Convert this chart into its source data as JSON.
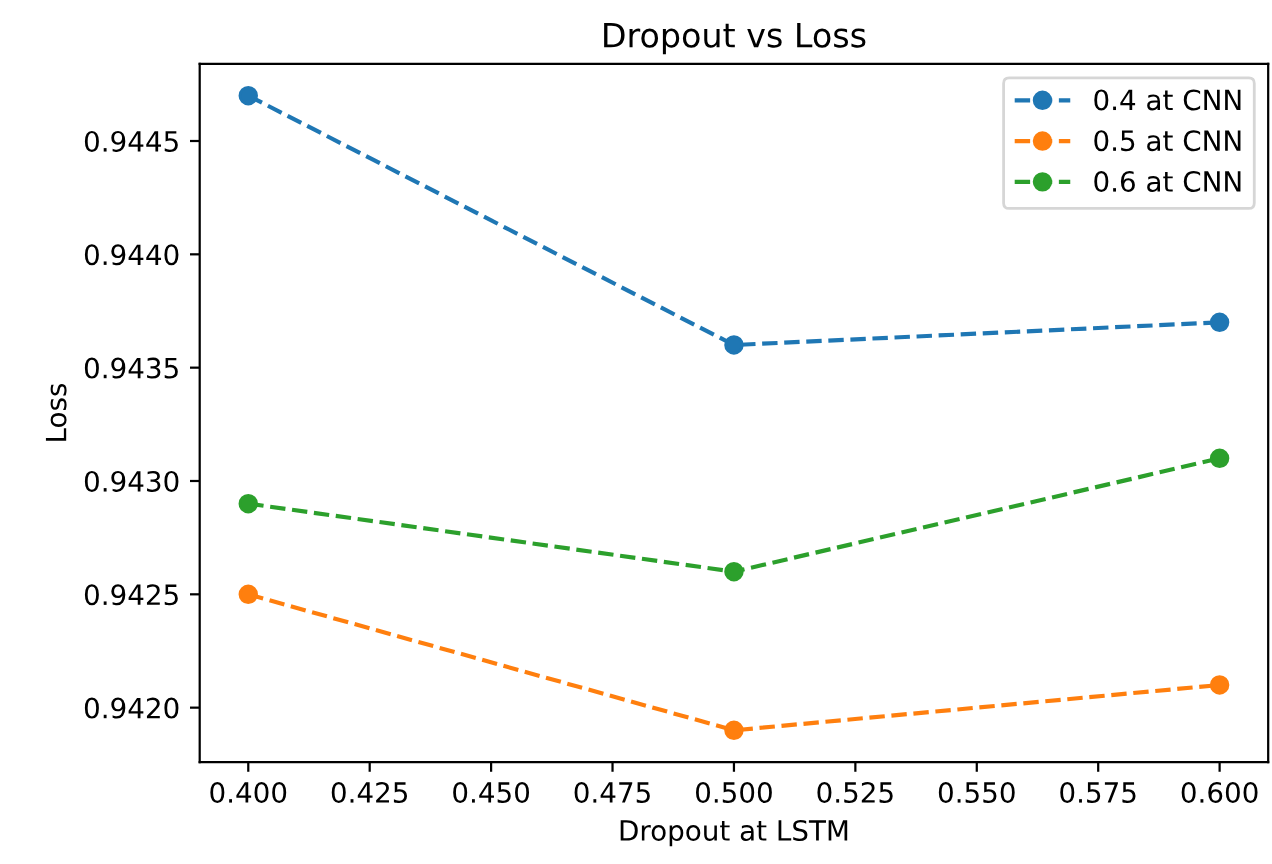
{
  "chart_data": {
    "type": "line",
    "title": "Dropout vs Loss",
    "xlabel": "Dropout at LSTM",
    "ylabel": "Loss",
    "x": [
      0.4,
      0.5,
      0.6
    ],
    "series": [
      {
        "name": "0.4 at CNN",
        "color": "#1f77b4",
        "values": [
          0.9447,
          0.9436,
          0.9437
        ]
      },
      {
        "name": "0.5 at CNN",
        "color": "#ff7f0e",
        "values": [
          0.9425,
          0.9419,
          0.9421
        ]
      },
      {
        "name": "0.6 at CNN",
        "color": "#2ca02c",
        "values": [
          0.9429,
          0.9426,
          0.9431
        ]
      }
    ],
    "xlim": [
      0.39,
      0.61
    ],
    "xticks": [
      {
        "value": 0.4,
        "label": "0.400"
      },
      {
        "value": 0.425,
        "label": "0.425"
      },
      {
        "value": 0.45,
        "label": "0.450"
      },
      {
        "value": 0.475,
        "label": "0.475"
      },
      {
        "value": 0.5,
        "label": "0.500"
      },
      {
        "value": 0.525,
        "label": "0.525"
      },
      {
        "value": 0.55,
        "label": "0.550"
      },
      {
        "value": 0.575,
        "label": "0.575"
      },
      {
        "value": 0.6,
        "label": "0.600"
      }
    ],
    "ylim": [
      0.94176,
      0.94484
    ],
    "yticks": [
      {
        "value": 0.942,
        "label": "0.9420"
      },
      {
        "value": 0.9425,
        "label": "0.9425"
      },
      {
        "value": 0.943,
        "label": "0.9430"
      },
      {
        "value": 0.9435,
        "label": "0.9435"
      },
      {
        "value": 0.944,
        "label": "0.9440"
      },
      {
        "value": 0.9445,
        "label": "0.9445"
      }
    ],
    "grid": false,
    "legend": "top right",
    "marker": "circle",
    "line_style": "dashed"
  }
}
